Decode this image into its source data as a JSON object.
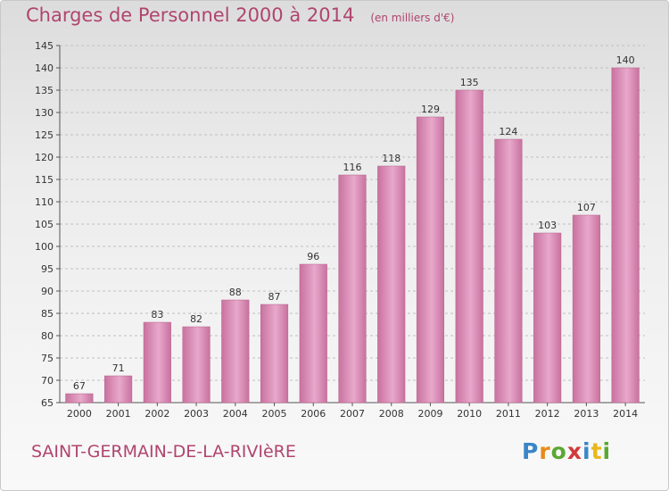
{
  "header": {
    "title": "Charges de Personnel 2000 à 2014",
    "unit": "(en milliers d'€)"
  },
  "footer": {
    "commune": "SAINT-GERMAIN-DE-LA-RIVIèRE",
    "logo": "Proxiti"
  },
  "chart_data": {
    "type": "bar",
    "title": "Charges de Personnel 2000 à 2014",
    "subtitle": "(en milliers d'€)",
    "xlabel": "",
    "ylabel": "",
    "categories": [
      "2000",
      "2001",
      "2002",
      "2003",
      "2004",
      "2005",
      "2006",
      "2007",
      "2008",
      "2009",
      "2010",
      "2011",
      "2012",
      "2013",
      "2014"
    ],
    "values": [
      67,
      71,
      83,
      82,
      88,
      87,
      96,
      116,
      118,
      129,
      135,
      124,
      103,
      107,
      140
    ],
    "ylim": [
      65,
      145
    ],
    "yticks": [
      65,
      70,
      75,
      80,
      85,
      90,
      95,
      100,
      105,
      110,
      115,
      120,
      125,
      130,
      135,
      140,
      145
    ],
    "grid": true,
    "bar_color": "#c8729f",
    "bar_color_light": "#e8a8cb",
    "label_color": "#b0456e"
  }
}
